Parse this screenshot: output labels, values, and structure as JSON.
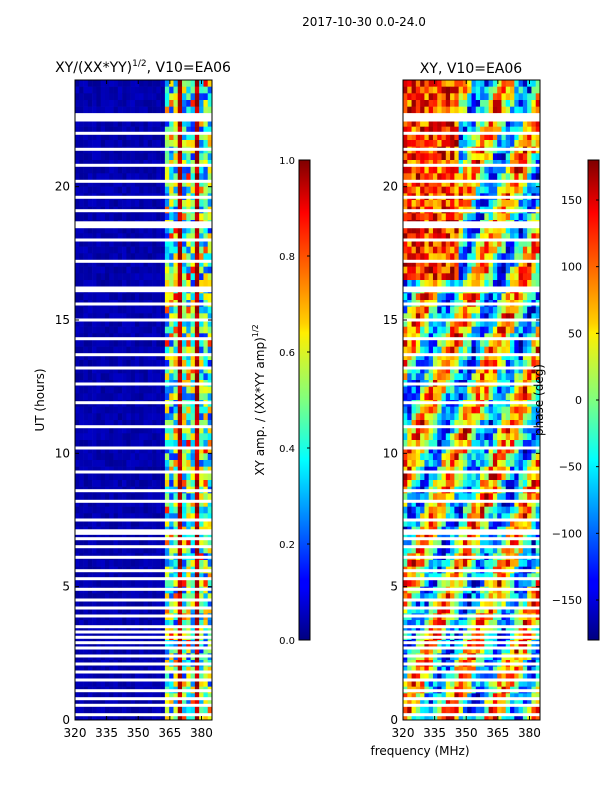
{
  "suptitle": "2017-10-30 0.0-24.0",
  "shared_xlabel": "frequency (MHz)",
  "chart_data": [
    {
      "type": "heatmap",
      "title_main": "XY/(XX*YY)",
      "title_sup": "1/2",
      "title_rest": ", V10=EA06",
      "ylabel": "UT (hours)",
      "xticks": [
        320,
        335,
        350,
        365,
        380
      ],
      "yticks": [
        0,
        5,
        10,
        15,
        20
      ],
      "xlim": [
        320,
        385
      ],
      "ylim": [
        0,
        24
      ],
      "colorbar": {
        "label": "XY amp. / (XX*YY amp)",
        "label_sup": "1/2",
        "ticks": [
          "0.0",
          "0.2",
          "0.4",
          "0.6",
          "0.8",
          "1.0"
        ],
        "range": [
          0,
          1
        ],
        "colormap": "jet"
      }
    },
    {
      "type": "heatmap",
      "title": "XY, V10=EA06",
      "xticks": [
        320,
        335,
        350,
        365,
        380
      ],
      "yticks": [
        0,
        5,
        10,
        15,
        20
      ],
      "xlim": [
        320,
        385
      ],
      "ylim": [
        0,
        24
      ],
      "colorbar": {
        "label": "phase (deg)",
        "ticks": [
          "150",
          "100",
          "50",
          "0",
          "−50",
          "−100",
          "−150"
        ],
        "tick_values": [
          150,
          100,
          50,
          0,
          -50,
          -100,
          -150
        ],
        "range": [
          -180,
          180
        ],
        "colormap": "jet"
      }
    }
  ]
}
